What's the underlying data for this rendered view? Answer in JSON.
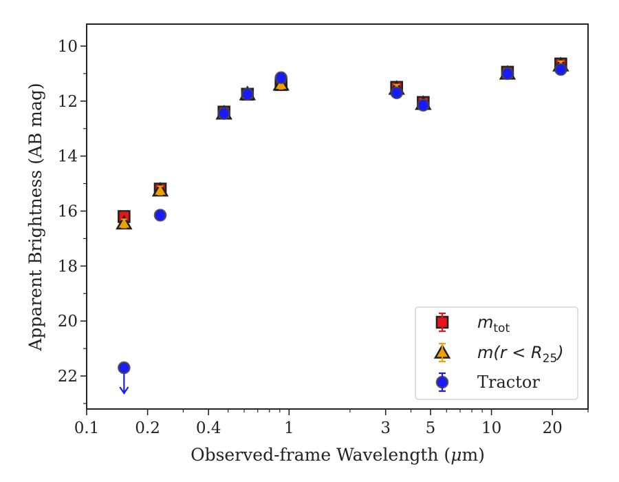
{
  "chart_data": {
    "type": "scatter",
    "xlabel_prefix": "Observed-frame Wavelength (",
    "xlabel_mu": "μ",
    "xlabel_suffix": "m)",
    "ylabel": "Apparent Brightness (AB mag)",
    "x_scale": "log",
    "xlim": [
      0.1,
      30
    ],
    "ylim": [
      9.2,
      23.2
    ],
    "y_inverted": true,
    "grid": false,
    "legend_position": "lower-right",
    "x_ticks": [
      {
        "value": 0.1,
        "label": "0.1"
      },
      {
        "value": 0.2,
        "label": "0.2"
      },
      {
        "value": 0.4,
        "label": "0.4"
      },
      {
        "value": 1,
        "label": "1"
      },
      {
        "value": 3,
        "label": "3"
      },
      {
        "value": 5,
        "label": "5"
      },
      {
        "value": 10,
        "label": "10"
      },
      {
        "value": 20,
        "label": "20"
      }
    ],
    "x_minor_ticks": [
      0.3,
      0.5,
      0.6,
      0.7,
      0.8,
      0.9,
      2,
      4,
      6,
      7,
      8,
      9,
      30
    ],
    "y_ticks": [
      {
        "value": 10,
        "label": "10"
      },
      {
        "value": 12,
        "label": "12"
      },
      {
        "value": 14,
        "label": "14"
      },
      {
        "value": 16,
        "label": "16"
      },
      {
        "value": 18,
        "label": "18"
      },
      {
        "value": 20,
        "label": "20"
      },
      {
        "value": 22,
        "label": "22"
      }
    ],
    "y_minor_ticks": [
      11,
      13,
      15,
      17,
      19,
      21,
      23
    ],
    "series": [
      {
        "name_main": "m",
        "name_sub": "tot",
        "marker": "square",
        "color": "#e8141b",
        "errcolor": "#e8141b",
        "points": [
          {
            "x": 0.153,
            "y": 16.2
          },
          {
            "x": 0.231,
            "y": 15.2
          },
          {
            "x": 0.477,
            "y": 12.4
          },
          {
            "x": 0.623,
            "y": 11.75
          },
          {
            "x": 0.913,
            "y": 11.4
          },
          {
            "x": 3.4,
            "y": 11.5
          },
          {
            "x": 4.6,
            "y": 12.05
          },
          {
            "x": 12.0,
            "y": 10.95
          },
          {
            "x": 22.0,
            "y": 10.65
          }
        ]
      },
      {
        "name_main": "m(r < R",
        "name_sub": "25",
        "name_end": ")",
        "marker": "triangle",
        "color": "#f0a000",
        "errcolor": "#f0a000",
        "points": [
          {
            "x": 0.153,
            "y": 16.45
          },
          {
            "x": 0.231,
            "y": 15.25
          },
          {
            "x": 0.477,
            "y": 12.45
          },
          {
            "x": 0.623,
            "y": 11.75
          },
          {
            "x": 0.913,
            "y": 11.4
          },
          {
            "x": 3.4,
            "y": 11.55
          },
          {
            "x": 4.6,
            "y": 12.1
          },
          {
            "x": 12.0,
            "y": 11.0
          },
          {
            "x": 22.0,
            "y": 10.7
          }
        ]
      },
      {
        "name": "Tractor",
        "marker": "circle",
        "color": "#1a1aff",
        "errcolor": "#1a1aff",
        "points": [
          {
            "x": 0.153,
            "y": 21.7,
            "upper_limit": true
          },
          {
            "x": 0.231,
            "y": 16.15
          },
          {
            "x": 0.477,
            "y": 12.45
          },
          {
            "x": 0.623,
            "y": 11.75
          },
          {
            "x": 0.913,
            "y": 11.15
          },
          {
            "x": 3.4,
            "y": 11.7
          },
          {
            "x": 4.6,
            "y": 12.15
          },
          {
            "x": 12.0,
            "y": 11.0
          },
          {
            "x": 22.0,
            "y": 10.85
          }
        ]
      }
    ]
  }
}
